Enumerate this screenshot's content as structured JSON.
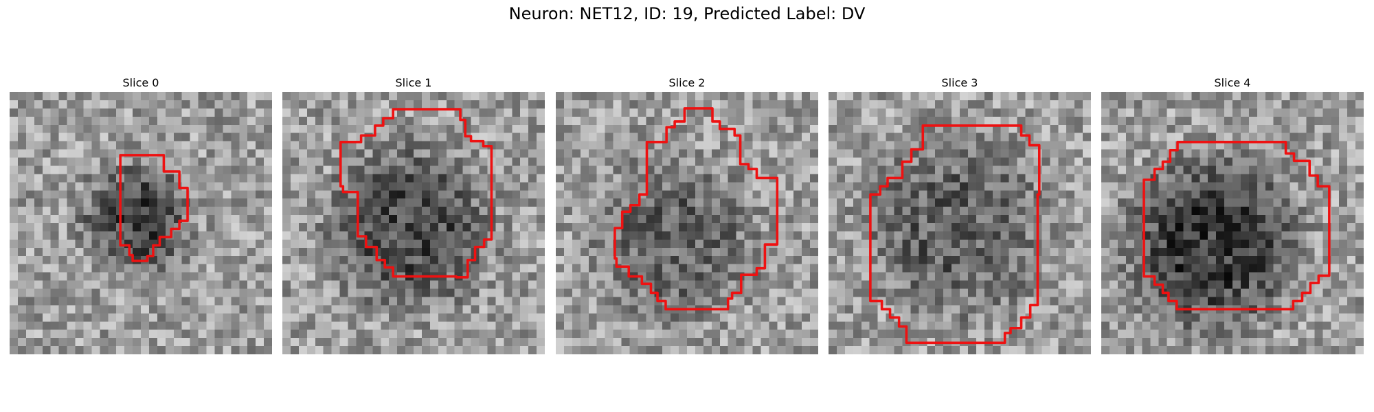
{
  "figure": {
    "title": "Neuron: NET12, ID: 19, Predicted Label: DV",
    "contour_color": "#ee1111",
    "colormap": "gray",
    "grid_size": 32,
    "panels": [
      {
        "title": "Slice 0",
        "seed": 11,
        "blob": {
          "cx": 15.5,
          "cy": 15.5,
          "r": 6.5,
          "dark": 0.22
        }
      },
      {
        "title": "Slice 1",
        "seed": 23,
        "blob": {
          "cx": 15.5,
          "cy": 16.5,
          "r": 10.5,
          "dark": 0.2
        }
      },
      {
        "title": "Slice 2",
        "seed": 37,
        "blob": {
          "cx": 14.5,
          "cy": 18.0,
          "r": 10.5,
          "dark": 0.14
        }
      },
      {
        "title": "Slice 3",
        "seed": 41,
        "blob": {
          "cx": 15.5,
          "cy": 16.5,
          "r": 12.0,
          "dark": 0.15
        }
      },
      {
        "title": "Slice 4",
        "seed": 53,
        "blob": {
          "cx": 13.5,
          "cy": 18.5,
          "r": 11.5,
          "dark": 0.24
        }
      }
    ]
  }
}
